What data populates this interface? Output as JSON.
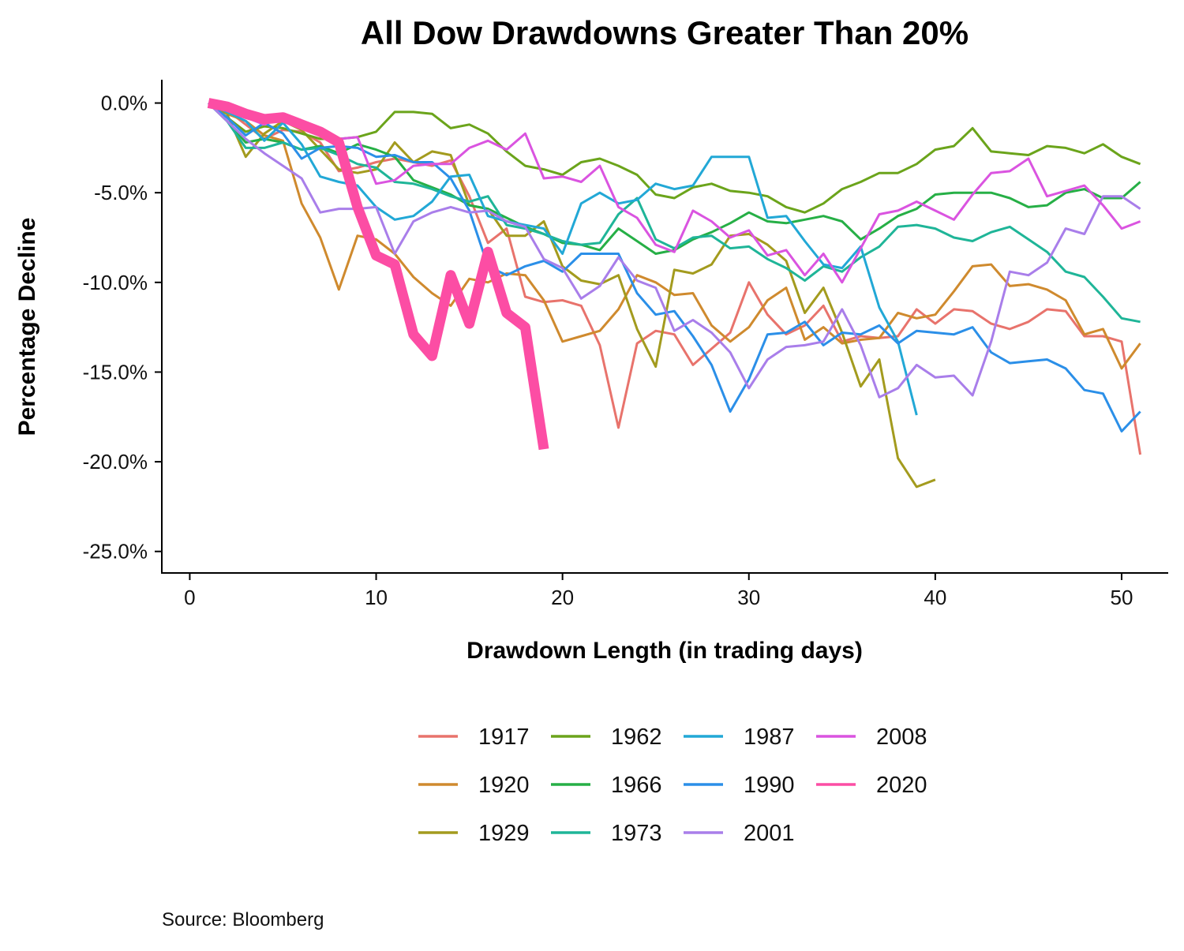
{
  "chart_data": {
    "type": "line",
    "title": "All Dow Drawdowns Greater Than 20%",
    "xlabel": "Drawdown Length (in trading days)",
    "ylabel": "Percentage Decline",
    "xlim": [
      -1.5,
      52.5
    ],
    "ylim": [
      -26.2,
      1.3
    ],
    "xticks": [
      0,
      10,
      20,
      30,
      40,
      50
    ],
    "xtick_labels": [
      "0",
      "10",
      "20",
      "30",
      "40",
      "50"
    ],
    "yticks": [
      0,
      -5,
      -10,
      -15,
      -20,
      -25
    ],
    "ytick_labels": [
      "0.0%",
      "-5.0%",
      "-10.0%",
      "-15.0%",
      "-20.0%",
      "-25.0%"
    ],
    "grid": false,
    "legend_position": "bottom",
    "source": "Source:  Bloomberg",
    "highlight_series": "2020",
    "series": [
      {
        "name": "1917",
        "color": "#E8736C",
        "values": [
          0,
          -0.4,
          -1.2,
          -2.0,
          -1.5,
          -1.6,
          -2.2,
          -3.8,
          -3.6,
          -3.3,
          -3.1,
          -3.3,
          -3.5,
          -3.2,
          -5.2,
          -7.8,
          -7.0,
          -10.8,
          -11.1,
          -11.0,
          -11.3,
          -13.5,
          -18.1,
          -13.4,
          -12.7,
          -12.9,
          -14.6,
          -13.7,
          -12.8,
          -10.0,
          -11.8,
          -12.9,
          -12.4,
          -11.3,
          -13.3,
          -13.0,
          -13.1,
          -13.0,
          -11.5,
          -12.3,
          -11.5,
          -11.6,
          -12.3,
          -12.6,
          -12.2,
          -11.5,
          -11.6,
          -13.0,
          -13.0,
          -13.3,
          -19.6
        ]
      },
      {
        "name": "1920",
        "color": "#CF8A2E",
        "values": [
          0,
          -0.6,
          -1.0,
          -1.8,
          -2.1,
          -5.6,
          -7.5,
          -10.4,
          -7.4,
          -7.6,
          -8.4,
          -9.7,
          -10.6,
          -11.3,
          -9.8,
          -10.0,
          -9.5,
          -9.6,
          -11.0,
          -13.3,
          -13.0,
          -12.7,
          -11.5,
          -9.6,
          -10.0,
          -10.7,
          -10.6,
          -12.4,
          -13.3,
          -12.5,
          -11.0,
          -10.3,
          -13.2,
          -12.5,
          -13.4,
          -13.2,
          -13.1,
          -11.7,
          -12.0,
          -11.8,
          -10.5,
          -9.1,
          -9.0,
          -10.2,
          -10.1,
          -10.4,
          -11.0,
          -12.9,
          -12.6,
          -14.8,
          -13.4
        ]
      },
      {
        "name": "1929",
        "color": "#A39B1E",
        "values": [
          0,
          -0.6,
          -3.0,
          -1.7,
          -1.0,
          -1.5,
          -2.6,
          -3.7,
          -3.9,
          -3.7,
          -2.2,
          -3.3,
          -2.7,
          -2.9,
          -5.7,
          -5.9,
          -7.4,
          -7.4,
          -6.6,
          -9.1,
          -9.9,
          -10.1,
          -9.6,
          -12.6,
          -14.7,
          -9.3,
          -9.5,
          -9.0,
          -7.4,
          -7.3,
          -7.9,
          -8.8,
          -11.7,
          -10.3,
          -12.8,
          -15.8,
          -14.3,
          -19.8,
          -21.4,
          -21.0,
          null,
          null,
          null,
          null,
          null,
          null,
          null,
          null,
          null,
          null,
          null
        ]
      },
      {
        "name": "1962",
        "color": "#6BA41B",
        "values": [
          0,
          -0.8,
          -1.6,
          -1.3,
          -1.4,
          -1.7,
          -2.0,
          -2.0,
          -1.9,
          -1.6,
          -0.5,
          -0.5,
          -0.6,
          -1.4,
          -1.2,
          -1.7,
          -2.7,
          -3.5,
          -3.7,
          -4.0,
          -3.3,
          -3.1,
          -3.5,
          -4.0,
          -5.1,
          -5.3,
          -4.7,
          -4.5,
          -4.9,
          -5.0,
          -5.2,
          -5.8,
          -6.1,
          -5.6,
          -4.8,
          -4.4,
          -3.9,
          -3.9,
          -3.4,
          -2.6,
          -2.4,
          -1.4,
          -2.7,
          -2.8,
          -2.9,
          -2.4,
          -2.5,
          -2.8,
          -2.3,
          -3.0,
          -3.4
        ]
      },
      {
        "name": "1966",
        "color": "#26AF46",
        "values": [
          0,
          -1.0,
          -2.2,
          -2.0,
          -2.2,
          -2.6,
          -2.4,
          -2.8,
          -2.3,
          -2.6,
          -3.0,
          -4.3,
          -4.7,
          -5.1,
          -5.7,
          -5.9,
          -6.4,
          -6.9,
          -7.3,
          -7.8,
          -7.9,
          -8.2,
          -7.0,
          -7.7,
          -8.4,
          -8.2,
          -7.6,
          -7.2,
          -6.7,
          -6.1,
          -6.6,
          -6.7,
          -6.5,
          -6.3,
          -6.6,
          -7.6,
          -7.0,
          -6.3,
          -5.9,
          -5.1,
          -5.0,
          -5.0,
          -5.0,
          -5.3,
          -5.8,
          -5.7,
          -5.0,
          -4.8,
          -5.3,
          -5.3,
          -4.4
        ]
      },
      {
        "name": "1973",
        "color": "#1FB598",
        "values": [
          0,
          -1.0,
          -2.5,
          -2.5,
          -2.2,
          -2.6,
          -2.5,
          -2.9,
          -3.4,
          -3.6,
          -4.4,
          -4.5,
          -4.8,
          -5.2,
          -5.5,
          -5.2,
          -6.8,
          -7.0,
          -7.3,
          -7.7,
          -7.9,
          -7.8,
          -6.2,
          -5.3,
          -7.6,
          -8.1,
          -7.5,
          -7.4,
          -8.1,
          -8.0,
          -8.7,
          -9.2,
          -9.9,
          -9.1,
          -9.4,
          -8.6,
          -8.0,
          -6.9,
          -6.8,
          -7.0,
          -7.5,
          -7.7,
          -7.2,
          -6.9,
          -7.6,
          -8.3,
          -9.4,
          -9.7,
          -10.8,
          -12.0,
          -12.2
        ]
      },
      {
        "name": "1987",
        "color": "#22A8D6",
        "values": [
          0,
          -0.5,
          -1.0,
          -2.1,
          -1.1,
          -2.3,
          -4.1,
          -4.4,
          -4.6,
          -5.8,
          -6.5,
          -6.3,
          -5.5,
          -4.1,
          -4.0,
          -6.3,
          -6.6,
          -6.8,
          -7.0,
          -8.4,
          -5.6,
          -5.0,
          -5.6,
          -5.4,
          -4.5,
          -4.8,
          -4.6,
          -3.0,
          -3.0,
          -3.0,
          -6.4,
          -6.3,
          -7.7,
          -9.0,
          -9.2,
          -8.0,
          -11.4,
          -13.3,
          -17.4,
          null,
          null,
          null,
          null,
          null,
          null,
          null,
          null,
          null,
          null,
          null,
          null
        ]
      },
      {
        "name": "1990",
        "color": "#2B8FE8",
        "values": [
          0,
          -0.8,
          -1.8,
          -1.1,
          -1.7,
          -3.1,
          -2.5,
          -2.4,
          -2.5,
          -3.0,
          -2.9,
          -3.3,
          -3.3,
          -4.2,
          -6.0,
          -9.1,
          -9.6,
          -9.1,
          -8.8,
          -9.4,
          -8.4,
          -8.4,
          -8.4,
          -10.6,
          -11.8,
          -11.6,
          -13.0,
          -14.6,
          -17.2,
          -15.4,
          -12.9,
          -12.8,
          -12.2,
          -13.5,
          -12.8,
          -12.9,
          -12.4,
          -13.4,
          -12.7,
          -12.8,
          -12.9,
          -12.5,
          -13.9,
          -14.5,
          -14.4,
          -14.3,
          -14.8,
          -16.0,
          -16.2,
          -18.3,
          -17.2
        ]
      },
      {
        "name": "2001",
        "color": "#A97EEA",
        "values": [
          0,
          -1.0,
          -2.0,
          -2.8,
          -3.5,
          -4.2,
          -6.1,
          -5.9,
          -5.9,
          -5.8,
          -8.4,
          -6.6,
          -6.1,
          -5.8,
          -6.1,
          -6.0,
          -6.6,
          -6.9,
          -8.7,
          -9.2,
          -10.9,
          -10.2,
          -8.6,
          -9.9,
          -10.3,
          -12.7,
          -12.1,
          -12.8,
          -13.9,
          -15.9,
          -14.3,
          -13.6,
          -13.5,
          -13.3,
          -11.5,
          -13.5,
          -16.4,
          -15.9,
          -14.6,
          -15.3,
          -15.2,
          -16.3,
          -13.3,
          -9.4,
          -9.6,
          -8.9,
          -7.0,
          -7.3,
          -5.2,
          -5.2,
          -5.9
        ]
      },
      {
        "name": "2008",
        "color": "#DA54E0",
        "values": [
          0,
          -0.4,
          -0.8,
          -1.2,
          -0.6,
          -1.1,
          -1.5,
          -2.0,
          -1.9,
          -4.5,
          -4.3,
          -3.5,
          -3.4,
          -3.4,
          -2.5,
          -2.1,
          -2.6,
          -1.7,
          -4.2,
          -4.1,
          -4.4,
          -3.5,
          -5.8,
          -6.4,
          -7.9,
          -8.3,
          -6.0,
          -6.6,
          -7.5,
          -7.1,
          -8.5,
          -8.2,
          -9.6,
          -8.4,
          -10.0,
          -8.1,
          -6.2,
          -6.0,
          -5.5,
          -6.0,
          -6.5,
          -5.1,
          -3.9,
          -3.8,
          -3.1,
          -5.2,
          -4.9,
          -4.6,
          -5.7,
          -7.0,
          -6.6
        ]
      },
      {
        "name": "2020",
        "color": "#FC4DA4",
        "values": [
          0,
          -0.2,
          -0.6,
          -0.9,
          -0.8,
          -1.2,
          -1.6,
          -2.2,
          -5.8,
          -8.5,
          -9.0,
          -12.9,
          -14.1,
          -9.6,
          -12.3,
          -8.3,
          -11.7,
          -12.5,
          -19.3
        ]
      }
    ]
  }
}
